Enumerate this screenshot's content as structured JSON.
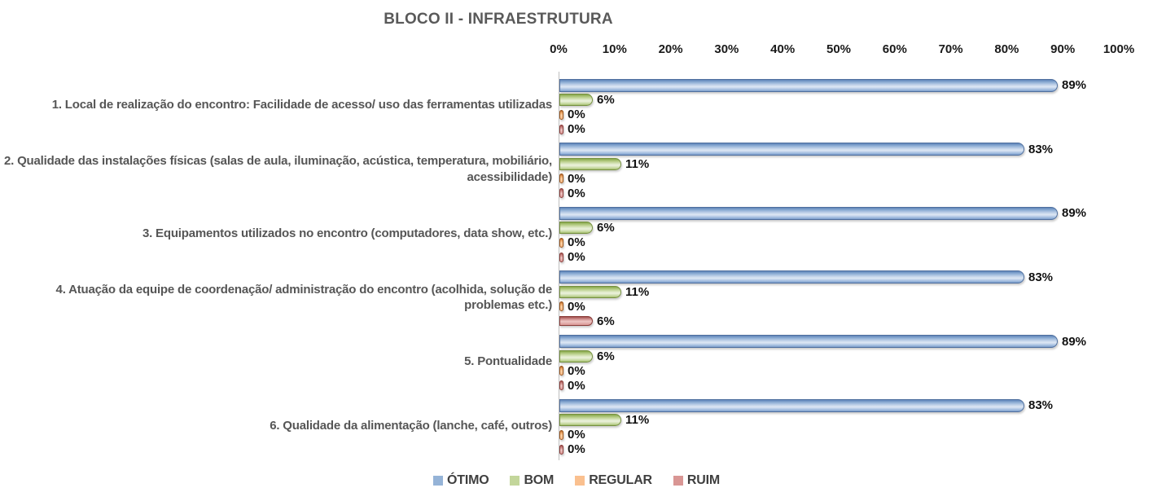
{
  "title": "BLOCO II - INFRAESTRUTURA",
  "chart_data": {
    "type": "bar",
    "orientation": "horizontal",
    "title": "BLOCO II - INFRAESTRUTURA",
    "xlim": [
      0,
      100
    ],
    "x_ticks": [
      "0%",
      "10%",
      "20%",
      "30%",
      "40%",
      "50%",
      "60%",
      "70%",
      "80%",
      "90%",
      "100%"
    ],
    "grid": false,
    "legend_position": "bottom",
    "value_label_format": "{v}%",
    "categories": [
      "1. Local de realização do encontro: Facilidade de acesso/ uso das ferramentas utilizadas",
      "2. Qualidade das instalações físicas (salas de aula, iluminação, acústica, temperatura, mobiliário, acessibilidade)",
      "3. Equipamentos utilizados no encontro (computadores, data show, etc.)",
      "4. Atuação da equipe de coordenação/ administração do encontro (acolhida, solução de problemas etc.)",
      "5. Pontualidade",
      "6. Qualidade da alimentação (lanche, café, outros)"
    ],
    "series": [
      {
        "name": "ÓTIMO",
        "color": "#95B3D7",
        "values": [
          89,
          83,
          89,
          83,
          89,
          83
        ]
      },
      {
        "name": "BOM",
        "color": "#C3D69B",
        "values": [
          6,
          11,
          6,
          11,
          6,
          11
        ]
      },
      {
        "name": "REGULAR",
        "color": "#FAC08F",
        "values": [
          0,
          0,
          0,
          0,
          0,
          0
        ]
      },
      {
        "name": "RUIM",
        "color": "#D99694",
        "values": [
          0,
          0,
          0,
          6,
          0,
          0
        ]
      }
    ]
  }
}
